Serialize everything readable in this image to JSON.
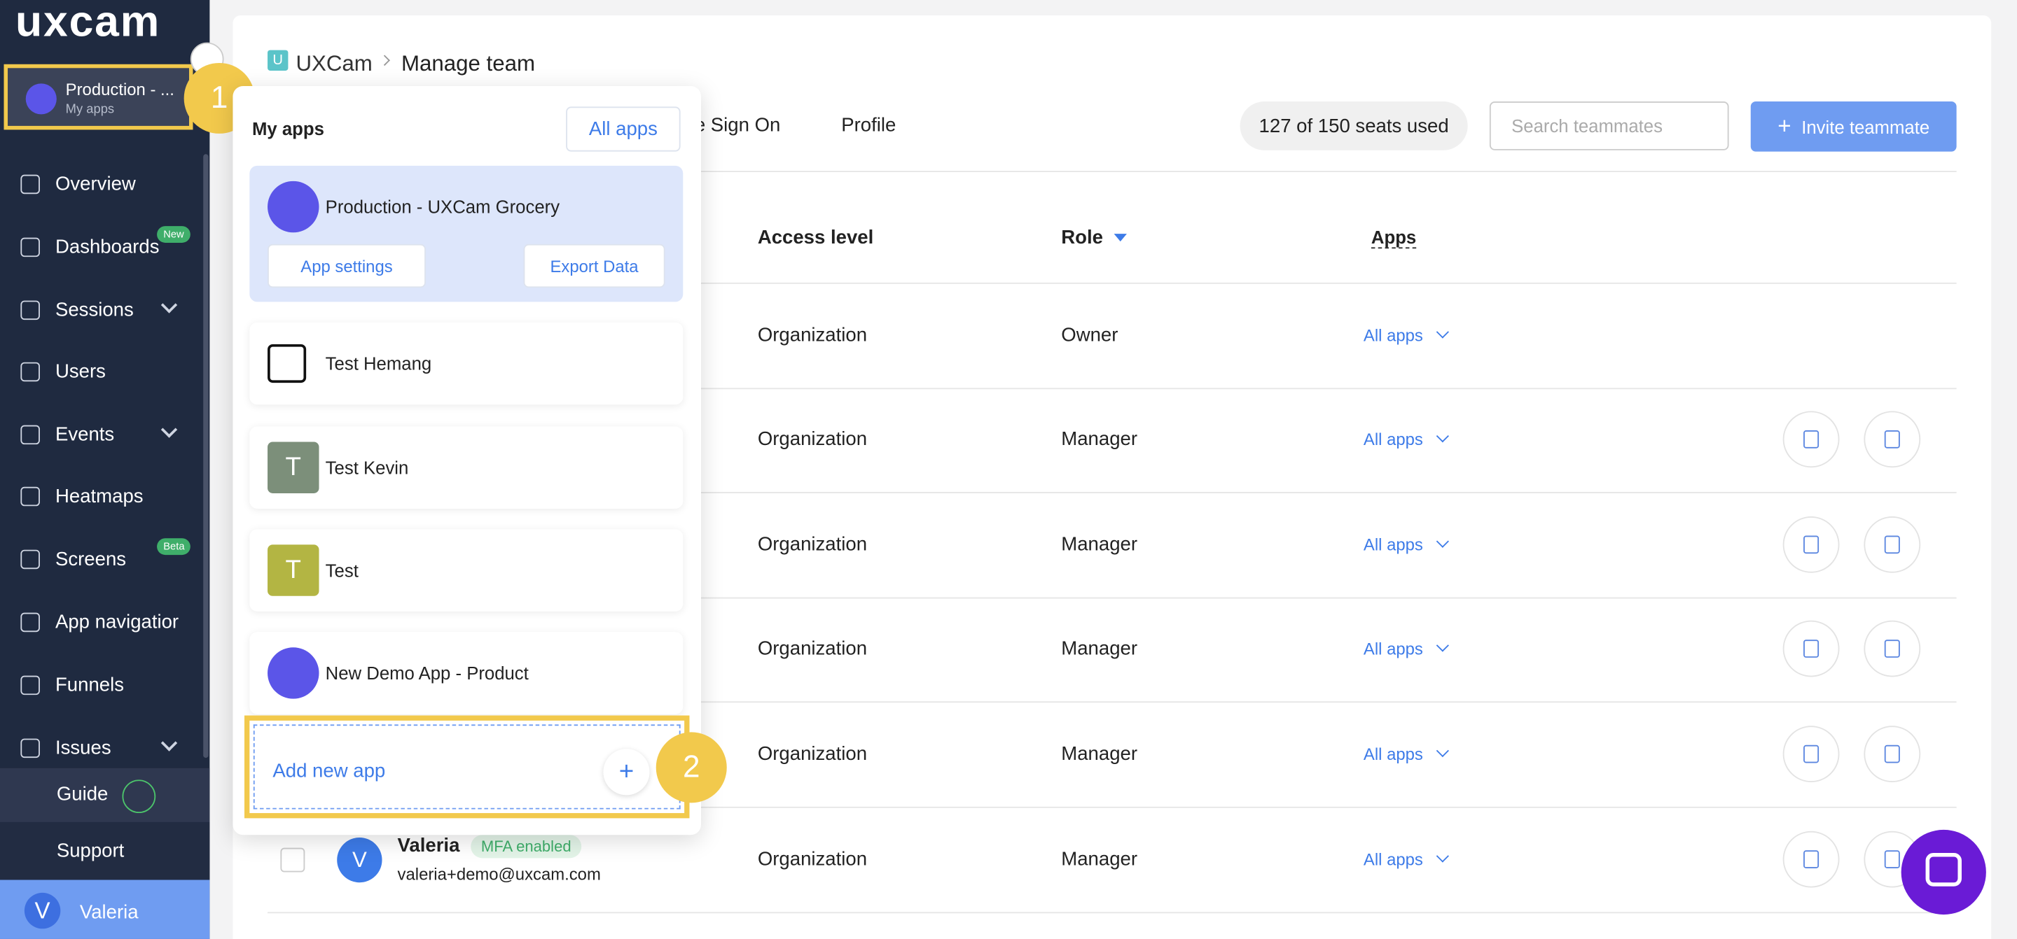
{
  "sidebar": {
    "logo": "uxcam",
    "app_switcher": {
      "name": "Production - ...",
      "sub": "My apps"
    },
    "nav": [
      {
        "label": "Overview"
      },
      {
        "label": "Dashboards",
        "badge": "New"
      },
      {
        "label": "Sessions"
      },
      {
        "label": "Users"
      },
      {
        "label": "Events"
      },
      {
        "label": "Heatmaps"
      },
      {
        "label": "Screens",
        "badge": "Beta"
      },
      {
        "label": "App navigatior"
      },
      {
        "label": "Funnels"
      },
      {
        "label": "Issues"
      }
    ],
    "guide": "Guide",
    "support": "Support",
    "user": {
      "initial": "V",
      "name": "Valeria"
    }
  },
  "annotations": [
    "1",
    "2"
  ],
  "header": {
    "brand_icon": "U",
    "brand": "UXCam",
    "page": "Manage team"
  },
  "tabs": [
    "e Sign On",
    "Profile"
  ],
  "seats": "127 of 150 seats used",
  "search_placeholder": "Search teammates",
  "invite_button": "Invite teammate",
  "table": {
    "columns": [
      "Access level",
      "Role",
      "Apps"
    ],
    "rows": [
      [
        "Organization",
        "Owner",
        "All apps"
      ],
      [
        "Organization",
        "Manager",
        "All apps"
      ],
      [
        "Organization",
        "Manager",
        "All apps"
      ],
      [
        "Organization",
        "Manager",
        "All apps"
      ],
      [
        "Organization",
        "Manager",
        "All apps"
      ],
      [
        "Organization",
        "Manager",
        "All apps"
      ]
    ]
  },
  "last_user": {
    "initial": "V",
    "name": "Valeria",
    "badge": "MFA enabled",
    "email": "valeria+demo@uxcam.com"
  },
  "popup": {
    "title": "My apps",
    "all_apps": "All apps",
    "apps": [
      {
        "name": "Production - UXCam Grocery"
      },
      {
        "name": "Test Hemang"
      },
      {
        "name": "Test Kevin",
        "icon": "T"
      },
      {
        "name": "Test",
        "icon": "T"
      },
      {
        "name": "New Demo App - Product"
      }
    ],
    "app_settings": "App settings",
    "export_data": "Export Data",
    "add_new_app": "Add new app"
  }
}
